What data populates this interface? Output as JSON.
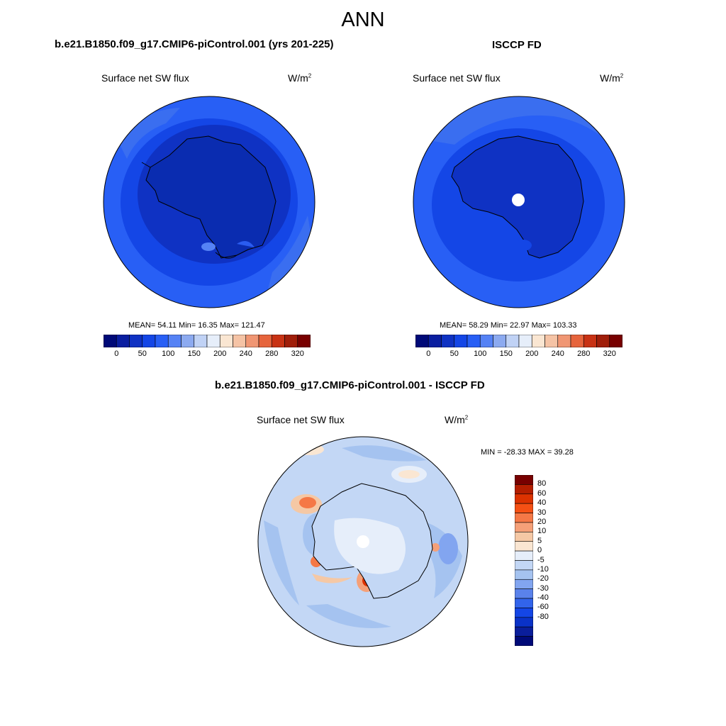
{
  "main_title": "ANN",
  "top_left": {
    "case_title": "b.e21.B1850.f09_g17.CMIP6-piControl.001 (yrs 201-225)",
    "variable": "Surface net SW flux",
    "units_base": "W/m",
    "units_exp": "2",
    "stats": "MEAN=  54.11  Min=  16.35  Max= 121.47"
  },
  "top_right": {
    "case_title": "ISCCP FD",
    "variable": "Surface net SW flux",
    "units_base": "W/m",
    "units_exp": "2",
    "stats": "MEAN=  58.29  Min=  22.97  Max= 103.33"
  },
  "abs_colorbar": {
    "colors": [
      "#000a78",
      "#0a1ea0",
      "#0f32c3",
      "#1446e6",
      "#285ff5",
      "#5582f5",
      "#8caaf0",
      "#c0d2f5",
      "#e6eefa",
      "#fae6d2",
      "#f5c3a5",
      "#f09673",
      "#e6643c",
      "#c83214",
      "#a01e0a",
      "#780000"
    ],
    "tick_labels": [
      "0",
      "50",
      "100",
      "150",
      "200",
      "240",
      "280",
      "320"
    ]
  },
  "bottom": {
    "case_title": "b.e21.B1850.f09_g17.CMIP6-piControl.001 - ISCCP FD",
    "variable": "Surface net SW flux",
    "units_base": "W/m",
    "units_exp": "2",
    "stats": "MIN = -28.33 MAX =  39.28"
  },
  "diff_colorbar": {
    "colors_top_to_bottom": [
      "#780000",
      "#b41e00",
      "#dc3200",
      "#f55014",
      "#f57846",
      "#f5a078",
      "#f5c8a5",
      "#fae6d2",
      "#e6eefa",
      "#c3d7f5",
      "#a5c3f0",
      "#82a5f0",
      "#5a82eb",
      "#3264eb",
      "#1446e6",
      "#0a32c8",
      "#0a1e9b",
      "#000a78"
    ],
    "tick_labels": [
      "80",
      "60",
      "40",
      "30",
      "20",
      "10",
      "5",
      "0",
      "-5",
      "-10",
      "-20",
      "-30",
      "-40",
      "-60",
      "-80"
    ]
  }
}
